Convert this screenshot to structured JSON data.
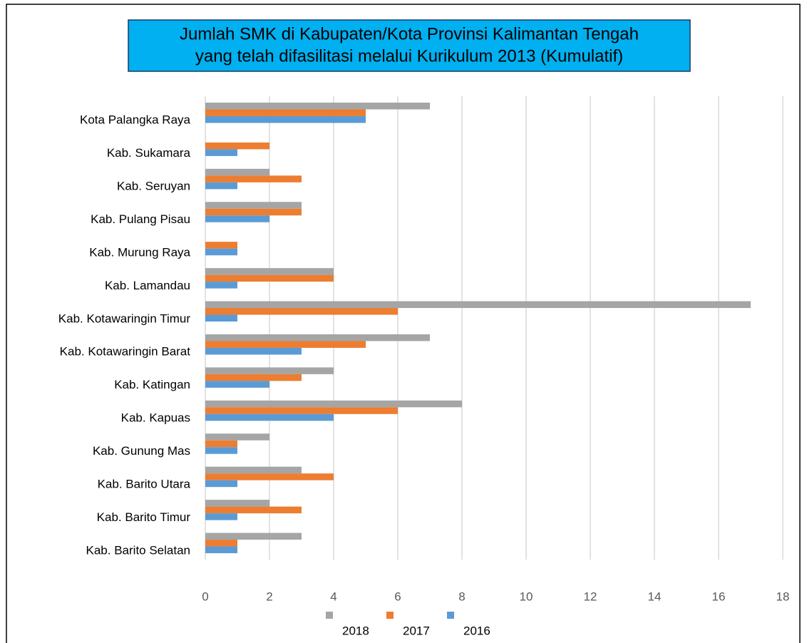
{
  "chart_data": {
    "type": "bar",
    "orientation": "horizontal",
    "title": [
      "Jumlah SMK di Kabupaten/Kota Provinsi Kalimantan Tengah",
      "yang telah difasilitasi melalui Kurikulum 2013 (Kumulatif)"
    ],
    "categories": [
      "Kota Palangka Raya",
      "Kab. Sukamara",
      "Kab. Seruyan",
      "Kab. Pulang Pisau",
      "Kab. Murung Raya",
      "Kab. Lamandau",
      "Kab. Kotawaringin Timur",
      "Kab. Kotawaringin Barat",
      "Kab. Katingan",
      "Kab. Kapuas",
      "Kab. Gunung Mas",
      "Kab. Barito Utara",
      "Kab. Barito Timur",
      "Kab. Barito Selatan"
    ],
    "series": [
      {
        "name": "2018",
        "color": "#a5a5a5",
        "values": [
          7,
          0,
          2,
          3,
          0,
          4,
          17,
          7,
          4,
          8,
          2,
          3,
          2,
          3
        ]
      },
      {
        "name": "2017",
        "color": "#ed7d31",
        "values": [
          5,
          2,
          3,
          3,
          1,
          4,
          6,
          5,
          3,
          6,
          1,
          4,
          3,
          1
        ]
      },
      {
        "name": "2016",
        "color": "#5b9bd5",
        "values": [
          5,
          1,
          1,
          2,
          1,
          1,
          1,
          3,
          2,
          4,
          1,
          1,
          1,
          1
        ]
      }
    ],
    "xlim": [
      0,
      18
    ],
    "xticks": [
      0,
      2,
      4,
      6,
      8,
      10,
      12,
      14,
      16,
      18
    ],
    "grid": true,
    "legend": "bottom"
  }
}
